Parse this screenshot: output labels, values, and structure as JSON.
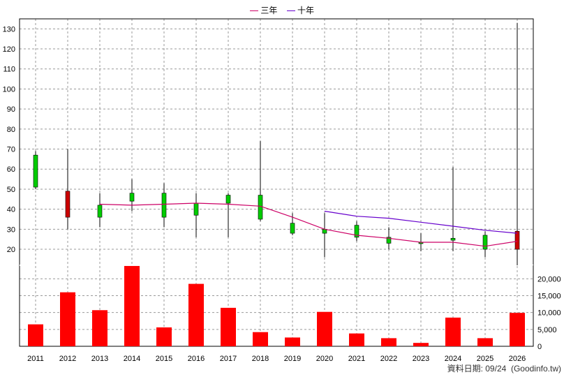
{
  "legend": {
    "items": [
      {
        "label": "三年",
        "color": "#cc0066"
      },
      {
        "label": "十年",
        "color": "#6600cc"
      }
    ]
  },
  "footer": {
    "text": "資料日期: 09/24  (Goodinfo.tw)"
  },
  "chart_data": {
    "type": "candlestick+bar",
    "categories": [
      "2011",
      "2012",
      "2013",
      "2014",
      "2015",
      "2016",
      "2017",
      "2018",
      "2019",
      "2020",
      "2021",
      "2022",
      "2023",
      "2024",
      "2025",
      "2026"
    ],
    "price_axis": {
      "range": [
        12,
        135
      ],
      "ticks": [
        20,
        30,
        40,
        50,
        60,
        70,
        80,
        90,
        100,
        110,
        120,
        130
      ],
      "grid": true
    },
    "volume_axis": {
      "range": [
        0,
        24000
      ],
      "ticks": [
        0,
        5000,
        10000,
        15000,
        20000
      ],
      "tick_labels": [
        "0",
        "5,000",
        "10,000",
        "15,000",
        "20,000"
      ],
      "grid": true
    },
    "candles": [
      {
        "year": "2011",
        "open": 51,
        "close": 67,
        "high": 69,
        "low": 50
      },
      {
        "year": "2012",
        "open": 49,
        "close": 36,
        "high": 70,
        "low": 30
      },
      {
        "year": "2013",
        "open": 36,
        "close": 42,
        "high": 48,
        "low": 31
      },
      {
        "year": "2014",
        "open": 44,
        "close": 48,
        "high": 55,
        "low": 39
      },
      {
        "year": "2015",
        "open": 36,
        "close": 48,
        "high": 53,
        "low": 31
      },
      {
        "year": "2016",
        "open": 37,
        "close": 43,
        "high": 48,
        "low": 26
      },
      {
        "year": "2017",
        "open": 43,
        "close": 47,
        "high": 48,
        "low": 26
      },
      {
        "year": "2018",
        "open": 35,
        "close": 47,
        "high": 74,
        "low": 34
      },
      {
        "year": "2019",
        "open": 28,
        "close": 33,
        "high": 38,
        "low": 27
      },
      {
        "year": "2020",
        "open": 28,
        "close": 30,
        "high": 38,
        "low": 16
      },
      {
        "year": "2021",
        "open": 26,
        "close": 32,
        "high": 34,
        "low": 24
      },
      {
        "year": "2022",
        "open": 23,
        "close": 26,
        "high": 31,
        "low": 20
      },
      {
        "year": "2023",
        "open": 23,
        "close": 23.5,
        "high": 28,
        "low": 19
      },
      {
        "year": "2024",
        "open": 24.5,
        "close": 25.5,
        "high": 61,
        "low": 19
      },
      {
        "year": "2025",
        "open": 20,
        "close": 27,
        "high": 29,
        "low": 16
      },
      {
        "year": "2026",
        "open": 29,
        "close": 20,
        "high": 133,
        "low": 12
      }
    ],
    "series": [
      {
        "name": "三年",
        "color": "#cc0066",
        "values": [
          null,
          null,
          42.5,
          42,
          42.5,
          43,
          42.5,
          41.5,
          36,
          30,
          27,
          25.5,
          23.5,
          23.5,
          21.5,
          24
        ]
      },
      {
        "name": "十年",
        "color": "#6600cc",
        "values": [
          null,
          null,
          null,
          null,
          null,
          null,
          null,
          null,
          null,
          39,
          36.5,
          35.5,
          33.5,
          31.5,
          29.5,
          28
        ]
      }
    ],
    "volume": [
      6500,
      16000,
      10700,
      23800,
      5600,
      18500,
      11400,
      4200,
      2600,
      10200,
      3800,
      2400,
      1000,
      8500,
      2400,
      9900
    ],
    "colors": {
      "up_candle": "#00cc00",
      "down_candle": "#cc0000",
      "volume_bar": "#ff0000",
      "grid": "#999999",
      "axis": "#000000"
    }
  }
}
